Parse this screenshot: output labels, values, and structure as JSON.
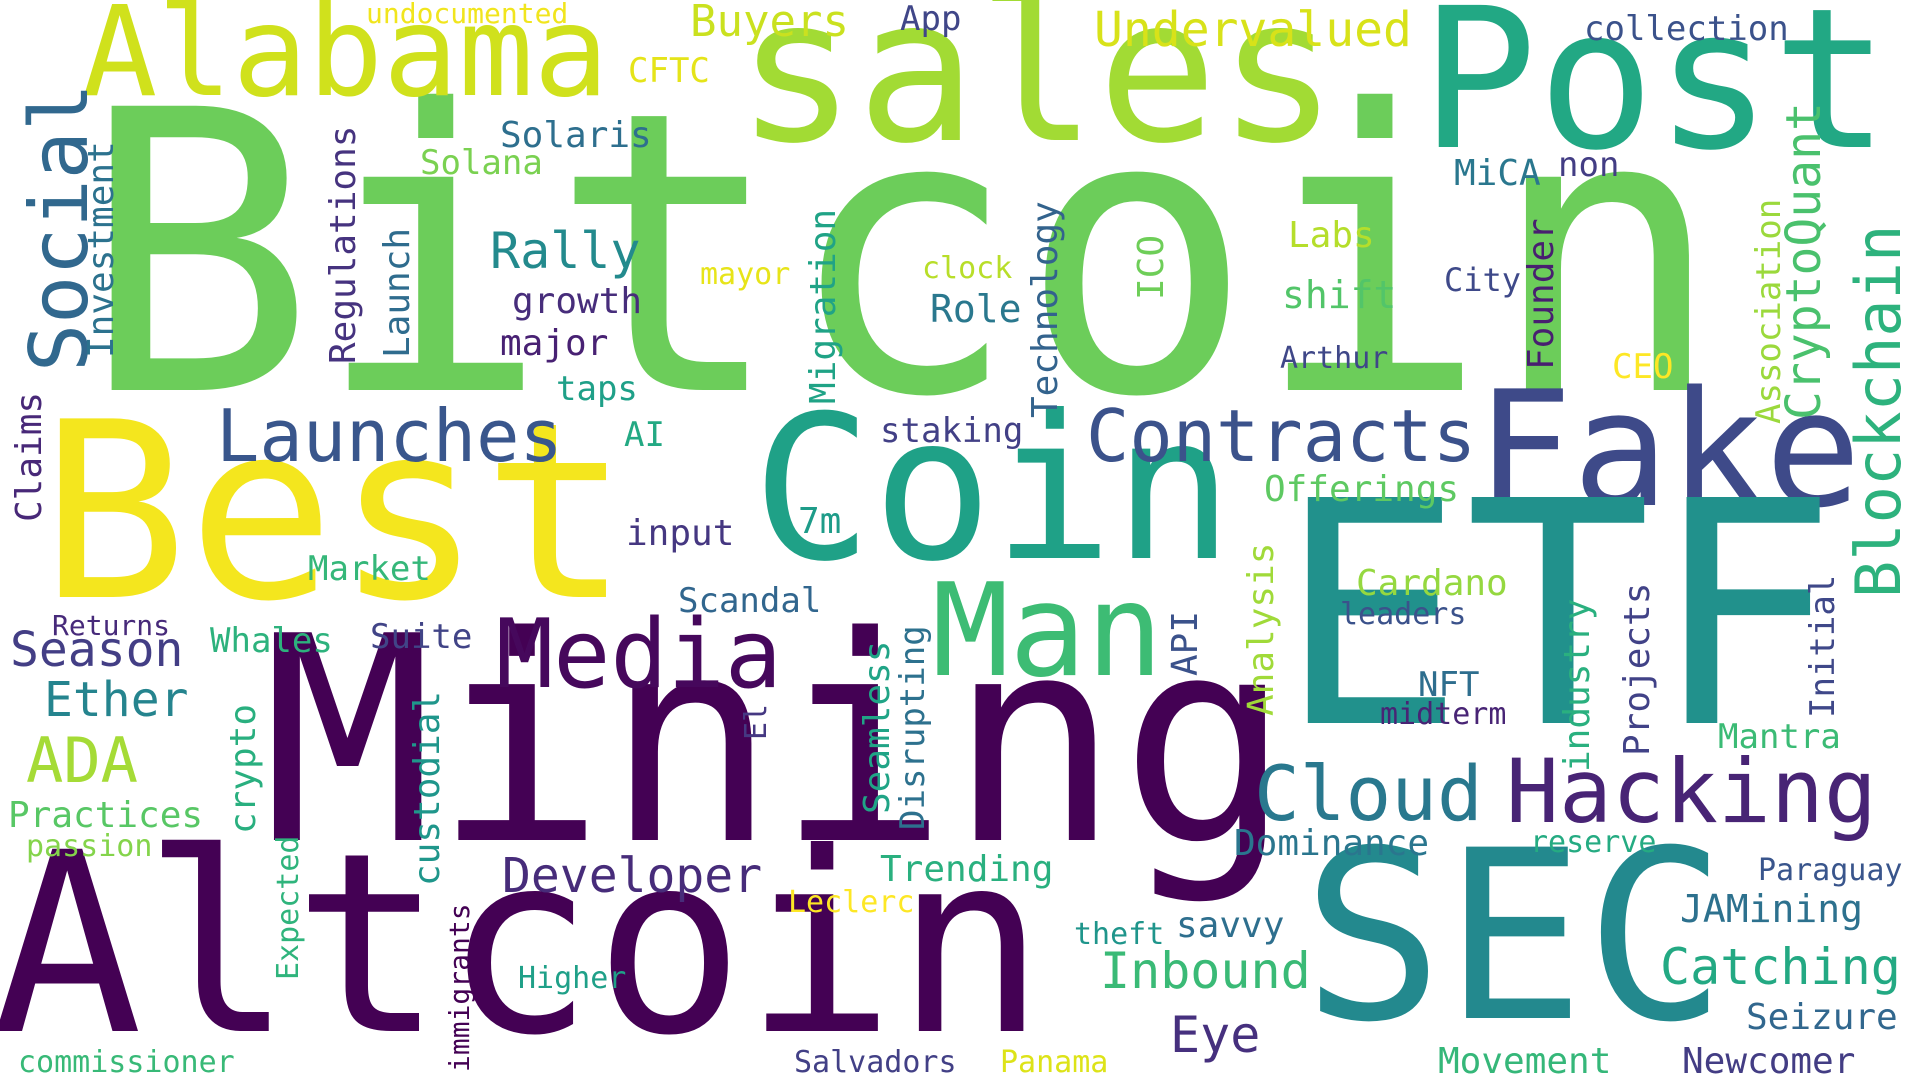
{
  "words": [
    {
      "text": "Bitcoin",
      "color": "#6ccd5a"
    },
    {
      "text": "sales",
      "color": "#a2db34"
    },
    {
      "text": "Post",
      "color": "#22a884"
    },
    {
      "text": "Alabama",
      "color": "#d0e11c"
    },
    {
      "text": "Best",
      "color": "#f4e61e"
    },
    {
      "text": "Coin",
      "color": "#1fa187"
    },
    {
      "text": "Fake",
      "color": "#3e4a89"
    },
    {
      "text": "ETF",
      "color": "#21918c"
    },
    {
      "text": "Mining",
      "color": "#440154"
    },
    {
      "text": "Altcoin",
      "color": "#440154"
    },
    {
      "text": "SEC",
      "color": "#23898e"
    },
    {
      "text": "Man",
      "color": "#3dbc74"
    },
    {
      "text": "Media",
      "color": "#46085c"
    },
    {
      "text": "Hacking",
      "color": "#482475"
    },
    {
      "text": "Cloud",
      "color": "#29788e"
    },
    {
      "text": "Launches",
      "color": "#39568c"
    },
    {
      "text": "Contracts",
      "color": "#3b528b"
    },
    {
      "text": "Social",
      "color": "#31688e"
    },
    {
      "text": "Blockchain",
      "color": "#2db27d"
    },
    {
      "text": "CryptoQuant",
      "color": "#4ac16d"
    },
    {
      "text": "Undervalued",
      "color": "#d8e219"
    },
    {
      "text": "Buyers",
      "color": "#cae11f"
    },
    {
      "text": "undocumented",
      "color": "#f1e51d"
    },
    {
      "text": "App",
      "color": "#404688"
    },
    {
      "text": "collection",
      "color": "#3b528b"
    },
    {
      "text": "CFTC",
      "color": "#e5e419"
    },
    {
      "text": "Solaris",
      "color": "#2e6f8e"
    },
    {
      "text": "Solana",
      "color": "#7ad151"
    },
    {
      "text": "Rally",
      "color": "#238a8d"
    },
    {
      "text": "growth",
      "color": "#472d7b"
    },
    {
      "text": "major",
      "color": "#482173"
    },
    {
      "text": "taps",
      "color": "#1fa088"
    },
    {
      "text": "AI",
      "color": "#23a983"
    },
    {
      "text": "input",
      "color": "#453781"
    },
    {
      "text": "Market",
      "color": "#35b779"
    },
    {
      "text": "Scandal",
      "color": "#31668e"
    },
    {
      "text": "Season",
      "color": "#433e85"
    },
    {
      "text": "Whales",
      "color": "#2db27d"
    },
    {
      "text": "Suite",
      "color": "#414487"
    },
    {
      "text": "Returns",
      "color": "#472a7a"
    },
    {
      "text": "Ether",
      "color": "#25848e"
    },
    {
      "text": "ADA",
      "color": "#a5db36"
    },
    {
      "text": "Practices",
      "color": "#58c765"
    },
    {
      "text": "passion",
      "color": "#84d44b"
    },
    {
      "text": "Claims",
      "color": "#482878"
    },
    {
      "text": "Investment",
      "color": "#2c728e"
    },
    {
      "text": "Regulations",
      "color": "#46337f"
    },
    {
      "text": "Launch",
      "color": "#2f6c8e"
    },
    {
      "text": "mayor",
      "color": "#e7e419"
    },
    {
      "text": "Migration",
      "color": "#20a386"
    },
    {
      "text": "clock",
      "color": "#b8de29"
    },
    {
      "text": "Role",
      "color": "#2a788e"
    },
    {
      "text": "Technology",
      "color": "#33638d"
    },
    {
      "text": "ICO",
      "color": "#6ece58"
    },
    {
      "text": "Labs",
      "color": "#b5de2b"
    },
    {
      "text": "shift",
      "color": "#52c569"
    },
    {
      "text": "Arthur",
      "color": "#3f4788"
    },
    {
      "text": "City",
      "color": "#3e4989"
    },
    {
      "text": "Founder",
      "color": "#481f70"
    },
    {
      "text": "CEO",
      "color": "#fde725"
    },
    {
      "text": "MiCA",
      "color": "#2a778e"
    },
    {
      "text": "non",
      "color": "#433d84"
    },
    {
      "text": "Association",
      "color": "#9bd93c"
    },
    {
      "text": "staking",
      "color": "#424086"
    },
    {
      "text": "7m",
      "color": "#1e9c89"
    },
    {
      "text": "Offerings",
      "color": "#5ec962"
    },
    {
      "text": "Analysis",
      "color": "#a0da39"
    },
    {
      "text": "Cardano",
      "color": "#95d840"
    },
    {
      "text": "leaders",
      "color": "#3b528b"
    },
    {
      "text": "NFT",
      "color": "#2e6e8e"
    },
    {
      "text": "midterm",
      "color": "#482475"
    },
    {
      "text": "industry",
      "color": "#2ab07f"
    },
    {
      "text": "Projects",
      "color": "#414287"
    },
    {
      "text": "Initial",
      "color": "#3f4889"
    },
    {
      "text": "Mantra",
      "color": "#3bbb75"
    },
    {
      "text": "Dominance",
      "color": "#2a768e"
    },
    {
      "text": "reserve",
      "color": "#25ab82"
    },
    {
      "text": "Paraguay",
      "color": "#39558c"
    },
    {
      "text": "JAMining",
      "color": "#2d718e"
    },
    {
      "text": "Catching",
      "color": "#23a983"
    },
    {
      "text": "Seizure",
      "color": "#31678e"
    },
    {
      "text": "Newcomer",
      "color": "#433d84"
    },
    {
      "text": "Movement",
      "color": "#35b779"
    },
    {
      "text": "Panama",
      "color": "#dde318"
    },
    {
      "text": "Salvadors",
      "color": "#424086"
    },
    {
      "text": "Eye",
      "color": "#46307e"
    },
    {
      "text": "Inbound",
      "color": "#3aba76"
    },
    {
      "text": "savvy",
      "color": "#2e6f8e"
    },
    {
      "text": "theft",
      "color": "#1f958b"
    },
    {
      "text": "Developer",
      "color": "#472c7a"
    },
    {
      "text": "Trending",
      "color": "#2ab07f"
    },
    {
      "text": "Leclerc",
      "color": "#fde725"
    },
    {
      "text": "Higher",
      "color": "#1fa088"
    },
    {
      "text": "immigrants",
      "color": "#440154"
    },
    {
      "text": "custodial",
      "color": "#1f968b"
    },
    {
      "text": "Expected",
      "color": "#2fb47c"
    },
    {
      "text": "commissioner",
      "color": "#38b977"
    },
    {
      "text": "crypto",
      "color": "#29af7f"
    },
    {
      "text": "El",
      "color": "#453882"
    },
    {
      "text": "Seamless",
      "color": "#20a486"
    },
    {
      "text": "Disrupting",
      "color": "#2d718e"
    },
    {
      "text": "API",
      "color": "#3b528b"
    }
  ]
}
